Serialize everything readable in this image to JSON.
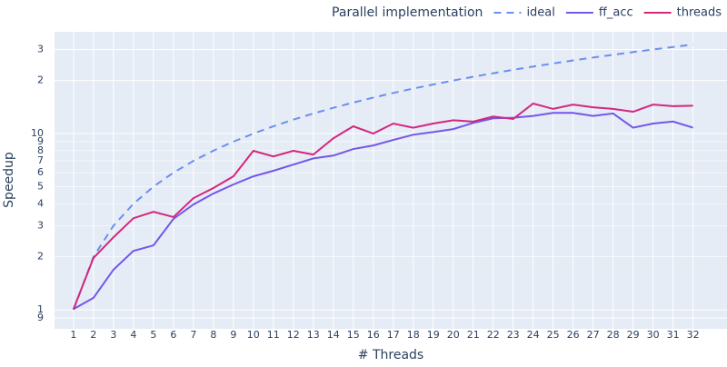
{
  "chart_data": {
    "type": "line",
    "legend_title": "Parallel implementation",
    "legend_position": "top-right",
    "xlabel": "# Threads",
    "ylabel": "Speedup",
    "log_y": true,
    "grid": true,
    "x": [
      1,
      2,
      3,
      4,
      5,
      6,
      7,
      8,
      9,
      10,
      11,
      12,
      13,
      14,
      15,
      16,
      17,
      18,
      19,
      20,
      21,
      22,
      23,
      24,
      25,
      26,
      27,
      28,
      29,
      30,
      31,
      32
    ],
    "series": [
      {
        "name": "ideal",
        "color": "#6a8ff0",
        "dash": true,
        "values": [
          1,
          2,
          3,
          4,
          5,
          6,
          7,
          8,
          9,
          10,
          11,
          12,
          13,
          14,
          15,
          16,
          17,
          18,
          19,
          20,
          21,
          22,
          23,
          24,
          25,
          26,
          27,
          28,
          29,
          30,
          31,
          32
        ]
      },
      {
        "name": "ff_acc",
        "color": "#7357e8",
        "dash": false,
        "values": [
          1.01,
          1.17,
          1.69,
          2.16,
          2.32,
          3.28,
          3.96,
          4.57,
          5.14,
          5.72,
          6.15,
          6.67,
          7.23,
          7.5,
          8.17,
          8.56,
          9.2,
          9.85,
          10.2,
          10.6,
          11.5,
          12.2,
          12.3,
          12.6,
          13.1,
          13.1,
          12.6,
          13.0,
          10.8,
          11.4,
          11.7,
          10.8
        ]
      },
      {
        "name": "threads",
        "color": "#d4267c",
        "dash": false,
        "values": [
          1.01,
          1.97,
          2.58,
          3.31,
          3.6,
          3.36,
          4.3,
          4.91,
          5.72,
          7.98,
          7.42,
          7.98,
          7.6,
          9.4,
          11.0,
          10.0,
          11.4,
          10.8,
          11.4,
          11.9,
          11.7,
          12.5,
          12.1,
          14.8,
          13.8,
          14.6,
          14.1,
          13.8,
          13.3,
          14.6,
          14.3,
          14.4
        ]
      }
    ],
    "xlim": [
      0.05,
      33.7
    ],
    "xticks": [
      1,
      2,
      3,
      4,
      5,
      6,
      7,
      8,
      9,
      10,
      11,
      12,
      13,
      14,
      15,
      16,
      17,
      18,
      19,
      20,
      21,
      22,
      23,
      24,
      25,
      26,
      27,
      28,
      29,
      30,
      31,
      32
    ],
    "ylim": [
      0.78,
      37.8
    ],
    "yticks": [
      {
        "value": 0.9,
        "label": "9"
      },
      1,
      2,
      3,
      4,
      5,
      6,
      7,
      8,
      9,
      10,
      {
        "value": 20,
        "label": "2"
      },
      {
        "value": 30,
        "label": "3"
      }
    ]
  }
}
